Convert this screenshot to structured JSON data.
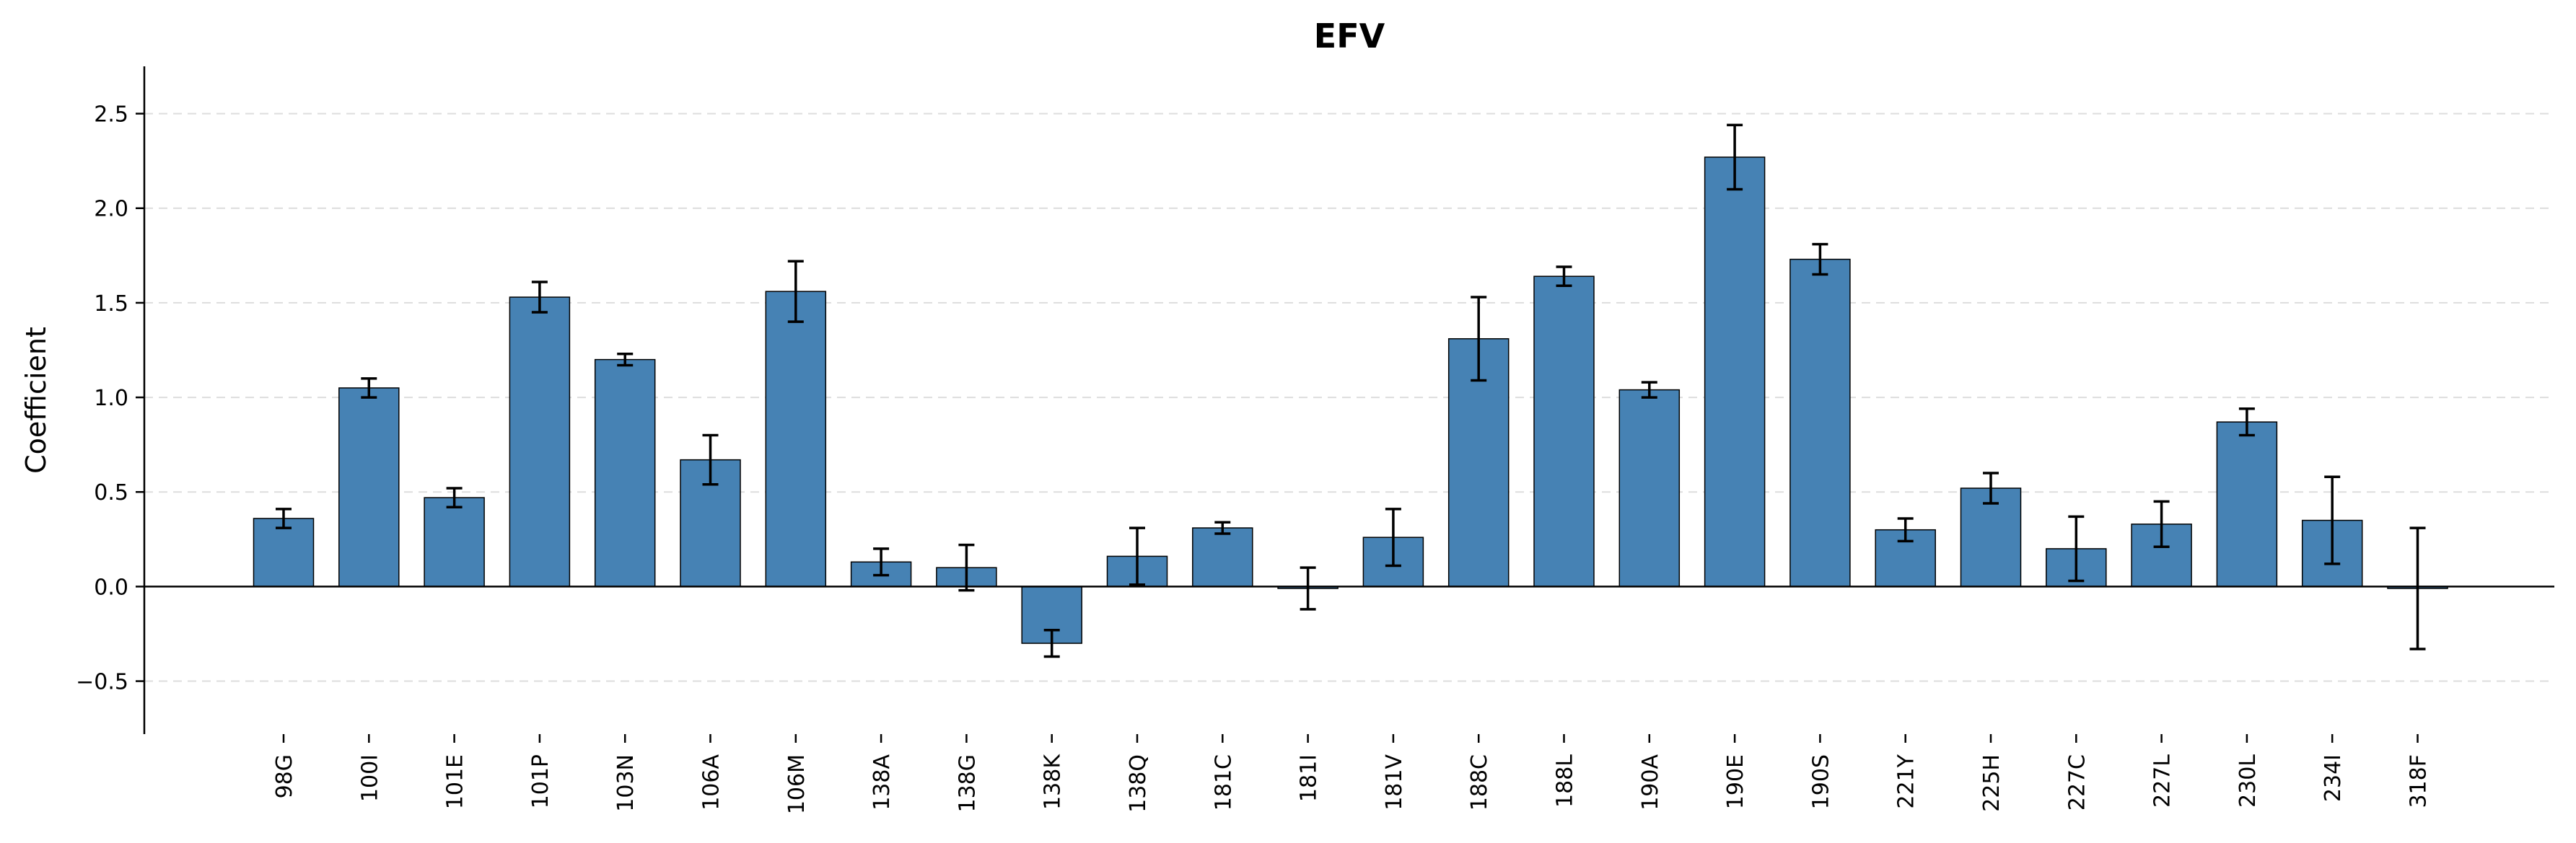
{
  "chart_data": {
    "type": "bar",
    "title": "EFV",
    "xlabel": "",
    "ylabel": "Coefficient",
    "ylim": [
      -0.78,
      2.75
    ],
    "yticks": [
      -0.5,
      0.0,
      0.5,
      1.0,
      1.5,
      2.0,
      2.5
    ],
    "ytick_labels": [
      "−0.5",
      "0.0",
      "0.5",
      "1.0",
      "1.5",
      "2.0",
      "2.5"
    ],
    "grid": "y-dashed",
    "bar_color": "#4682b4",
    "categories": [
      "98G",
      "100I",
      "101E",
      "101P",
      "103N",
      "106A",
      "106M",
      "138A",
      "138G",
      "138K",
      "138Q",
      "181C",
      "181I",
      "181V",
      "188C",
      "188L",
      "190A",
      "190E",
      "190S",
      "221Y",
      "225H",
      "227C",
      "227L",
      "230L",
      "234I",
      "318F"
    ],
    "values": [
      0.36,
      1.05,
      0.47,
      1.53,
      1.2,
      0.67,
      1.56,
      0.13,
      0.1,
      -0.3,
      0.16,
      0.31,
      -0.01,
      0.26,
      1.31,
      1.64,
      1.04,
      2.27,
      1.73,
      0.3,
      0.52,
      0.2,
      0.33,
      0.87,
      0.35,
      -0.01
    ],
    "errors": [
      0.05,
      0.05,
      0.05,
      0.08,
      0.03,
      0.13,
      0.16,
      0.07,
      0.12,
      0.07,
      0.15,
      0.03,
      0.11,
      0.15,
      0.22,
      0.05,
      0.04,
      0.17,
      0.08,
      0.06,
      0.08,
      0.17,
      0.12,
      0.07,
      0.23,
      0.32
    ]
  }
}
